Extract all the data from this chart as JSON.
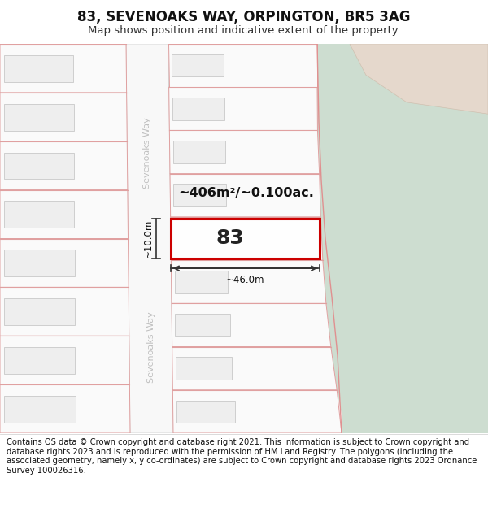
{
  "title": "83, SEVENOAKS WAY, ORPINGTON, BR5 3AG",
  "subtitle": "Map shows position and indicative extent of the property.",
  "footer": "Contains OS data © Crown copyright and database right 2021. This information is subject to Crown copyright and database rights 2023 and is reproduced with the permission of HM Land Registry. The polygons (including the associated geometry, namely x, y co-ordinates) are subject to Crown copyright and database rights 2023 Ordnance Survey 100026316.",
  "bg_color": "#ffffff",
  "plot_outline_color": "#e8a8a8",
  "highlight_color": "#cc0000",
  "green_area_color": "#cdddd0",
  "tan_area_color": "#e8ddd0",
  "area_text": "~406m²/~0.100ac.",
  "width_text": "~46.0m",
  "height_text": "~10.0m",
  "number_text": "83",
  "sevenoaks_label": "Sevenoaks Way",
  "title_fontsize": 12,
  "subtitle_fontsize": 9.5,
  "footer_fontsize": 7.2,
  "road_text_color": "#bbbbbb",
  "dim_line_color": "#333333"
}
